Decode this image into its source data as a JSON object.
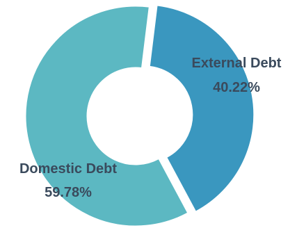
{
  "chart_data": {
    "type": "pie",
    "variant": "donut",
    "title": "",
    "legend": "none",
    "slices": [
      {
        "label": "External Debt",
        "value": 40.22,
        "value_label": "40.22%",
        "color": "#3a97bf",
        "exploded": true
      },
      {
        "label": "Domestic Debt",
        "value": 59.78,
        "value_label": "59.78%",
        "color": "#5cb8c2",
        "exploded": false
      }
    ]
  }
}
